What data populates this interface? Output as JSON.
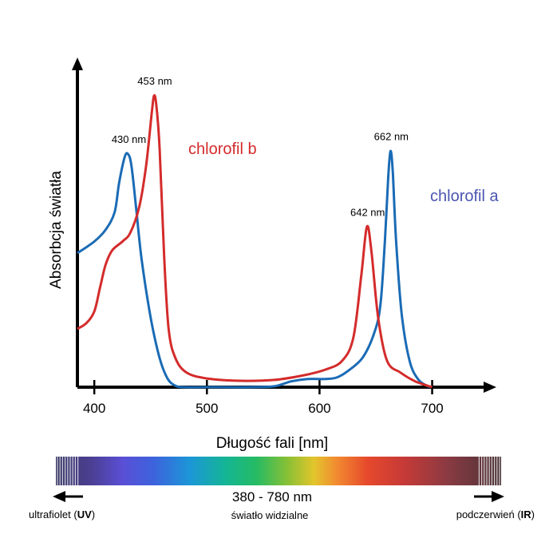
{
  "chart_data": {
    "type": "line",
    "xlabel": "Długość fali [nm]",
    "ylabel": "Absorbcja światła",
    "xlim": [
      385,
      740
    ],
    "ylim": [
      0,
      1
    ],
    "x_ticks": [
      400,
      500,
      600,
      700
    ],
    "series": [
      {
        "name": "chlorofil a",
        "color": "#1a6bb5",
        "label_color": "#4a55b0",
        "points": [
          [
            385,
            0.46
          ],
          [
            400,
            0.5
          ],
          [
            410,
            0.54
          ],
          [
            418,
            0.6
          ],
          [
            422,
            0.7
          ],
          [
            427,
            0.79
          ],
          [
            430,
            0.8
          ],
          [
            433,
            0.76
          ],
          [
            437,
            0.62
          ],
          [
            442,
            0.44
          ],
          [
            450,
            0.24
          ],
          [
            458,
            0.1
          ],
          [
            465,
            0.03
          ],
          [
            472,
            0.005
          ],
          [
            480,
            0.0
          ],
          [
            500,
            0.0
          ],
          [
            540,
            0.0
          ],
          [
            560,
            0.003
          ],
          [
            575,
            0.02
          ],
          [
            590,
            0.028
          ],
          [
            605,
            0.028
          ],
          [
            615,
            0.033
          ],
          [
            625,
            0.055
          ],
          [
            638,
            0.1
          ],
          [
            648,
            0.18
          ],
          [
            654,
            0.28
          ],
          [
            658,
            0.5
          ],
          [
            661,
            0.72
          ],
          [
            663,
            0.81
          ],
          [
            665,
            0.74
          ],
          [
            668,
            0.5
          ],
          [
            673,
            0.25
          ],
          [
            680,
            0.09
          ],
          [
            688,
            0.025
          ],
          [
            698,
            0.0
          ]
        ]
      },
      {
        "name": "chlorofil b",
        "color": "#d42b2b",
        "label_color": "#d42b2b",
        "points": [
          [
            385,
            0.2
          ],
          [
            393,
            0.22
          ],
          [
            400,
            0.26
          ],
          [
            405,
            0.34
          ],
          [
            410,
            0.42
          ],
          [
            416,
            0.47
          ],
          [
            425,
            0.5
          ],
          [
            432,
            0.53
          ],
          [
            440,
            0.62
          ],
          [
            446,
            0.76
          ],
          [
            451,
            0.94
          ],
          [
            453,
            1.0
          ],
          [
            455,
            0.97
          ],
          [
            458,
            0.82
          ],
          [
            462,
            0.45
          ],
          [
            466,
            0.2
          ],
          [
            472,
            0.1
          ],
          [
            482,
            0.05
          ],
          [
            500,
            0.03
          ],
          [
            530,
            0.022
          ],
          [
            560,
            0.025
          ],
          [
            585,
            0.04
          ],
          [
            605,
            0.06
          ],
          [
            620,
            0.09
          ],
          [
            630,
            0.17
          ],
          [
            637,
            0.38
          ],
          [
            642,
            0.55
          ],
          [
            646,
            0.47
          ],
          [
            652,
            0.24
          ],
          [
            660,
            0.09
          ],
          [
            672,
            0.05
          ],
          [
            685,
            0.02
          ],
          [
            700,
            0.0
          ]
        ]
      }
    ],
    "annotations": [
      {
        "text": "430 nm",
        "x": 430,
        "y": 0.8
      },
      {
        "text": "453 nm",
        "x": 453,
        "y": 1.0
      },
      {
        "text": "642 nm",
        "x": 642,
        "y": 0.55
      },
      {
        "text": "662 nm",
        "x": 663,
        "y": 0.81
      }
    ],
    "spectrum": {
      "range_label": "380 - 780 nm",
      "caption": "światło widzialne",
      "uv_label_prefix": "ultrafiolet (",
      "uv_label_bold": "UV",
      "uv_label_suffix": ")",
      "ir_label_prefix": "podczerwień (",
      "ir_label_bold": "IR",
      "ir_label_suffix": ")"
    },
    "grid": false,
    "legend": "inline labels"
  }
}
